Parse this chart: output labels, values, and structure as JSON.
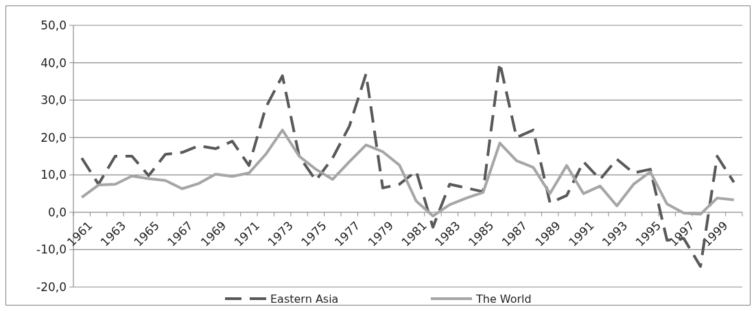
{
  "chart_data": {
    "type": "line",
    "categories": [
      "1961",
      null,
      "1963",
      null,
      "1965",
      null,
      "1967",
      null,
      "1969",
      null,
      "1971",
      null,
      "1973",
      null,
      "1975",
      null,
      "1977",
      null,
      "1979",
      null,
      "1981",
      null,
      "1983",
      null,
      "1985",
      null,
      "1987",
      null,
      "1989",
      null,
      "1991",
      null,
      "1993",
      null,
      "1995",
      null,
      "1997",
      null,
      "1999",
      null
    ],
    "series": [
      {
        "name": "Eastern Asia",
        "color": "#595959",
        "line_style": "dashed",
        "values": [
          14.5,
          7.5,
          15,
          15,
          9.8,
          15.5,
          16,
          17.8,
          17,
          19,
          12.5,
          28,
          36.5,
          15,
          8.5,
          14.5,
          23,
          37,
          6.5,
          7.5,
          11,
          -4,
          7.5,
          6.5,
          5.5,
          40,
          20,
          22,
          2.5,
          4.5,
          13.5,
          8.8,
          14.2,
          10.5,
          11.5,
          -7.5,
          -7,
          -14.5,
          15,
          8
        ]
      },
      {
        "name": "The World",
        "color": "#a6a6a6",
        "line_style": "solid",
        "values": [
          4,
          7.3,
          7.5,
          9.7,
          9,
          8.5,
          6.3,
          7.7,
          10.2,
          9.6,
          10.5,
          15.5,
          22,
          15,
          11.5,
          8.8,
          13.5,
          18,
          16.2,
          12.6,
          3,
          -1,
          2,
          3.8,
          5.3,
          18.5,
          13.8,
          12,
          5,
          12.5,
          5,
          7,
          1.7,
          7.5,
          10.8,
          2.2,
          -0.2,
          -0.5,
          3.8,
          3.3
        ]
      }
    ],
    "ylim": [
      -20,
      50
    ],
    "yticks": [
      {
        "value": -20,
        "label": "-20,0"
      },
      {
        "value": -10,
        "label": "-10,0"
      },
      {
        "value": 0,
        "label": "0,0"
      },
      {
        "value": 10,
        "label": "10,0"
      },
      {
        "value": 20,
        "label": "20,0"
      },
      {
        "value": 30,
        "label": "30,0"
      },
      {
        "value": 40,
        "label": "40,0"
      },
      {
        "value": 50,
        "label": "50,0"
      }
    ],
    "grid": "y",
    "legend": "bottom",
    "marker": "none"
  }
}
